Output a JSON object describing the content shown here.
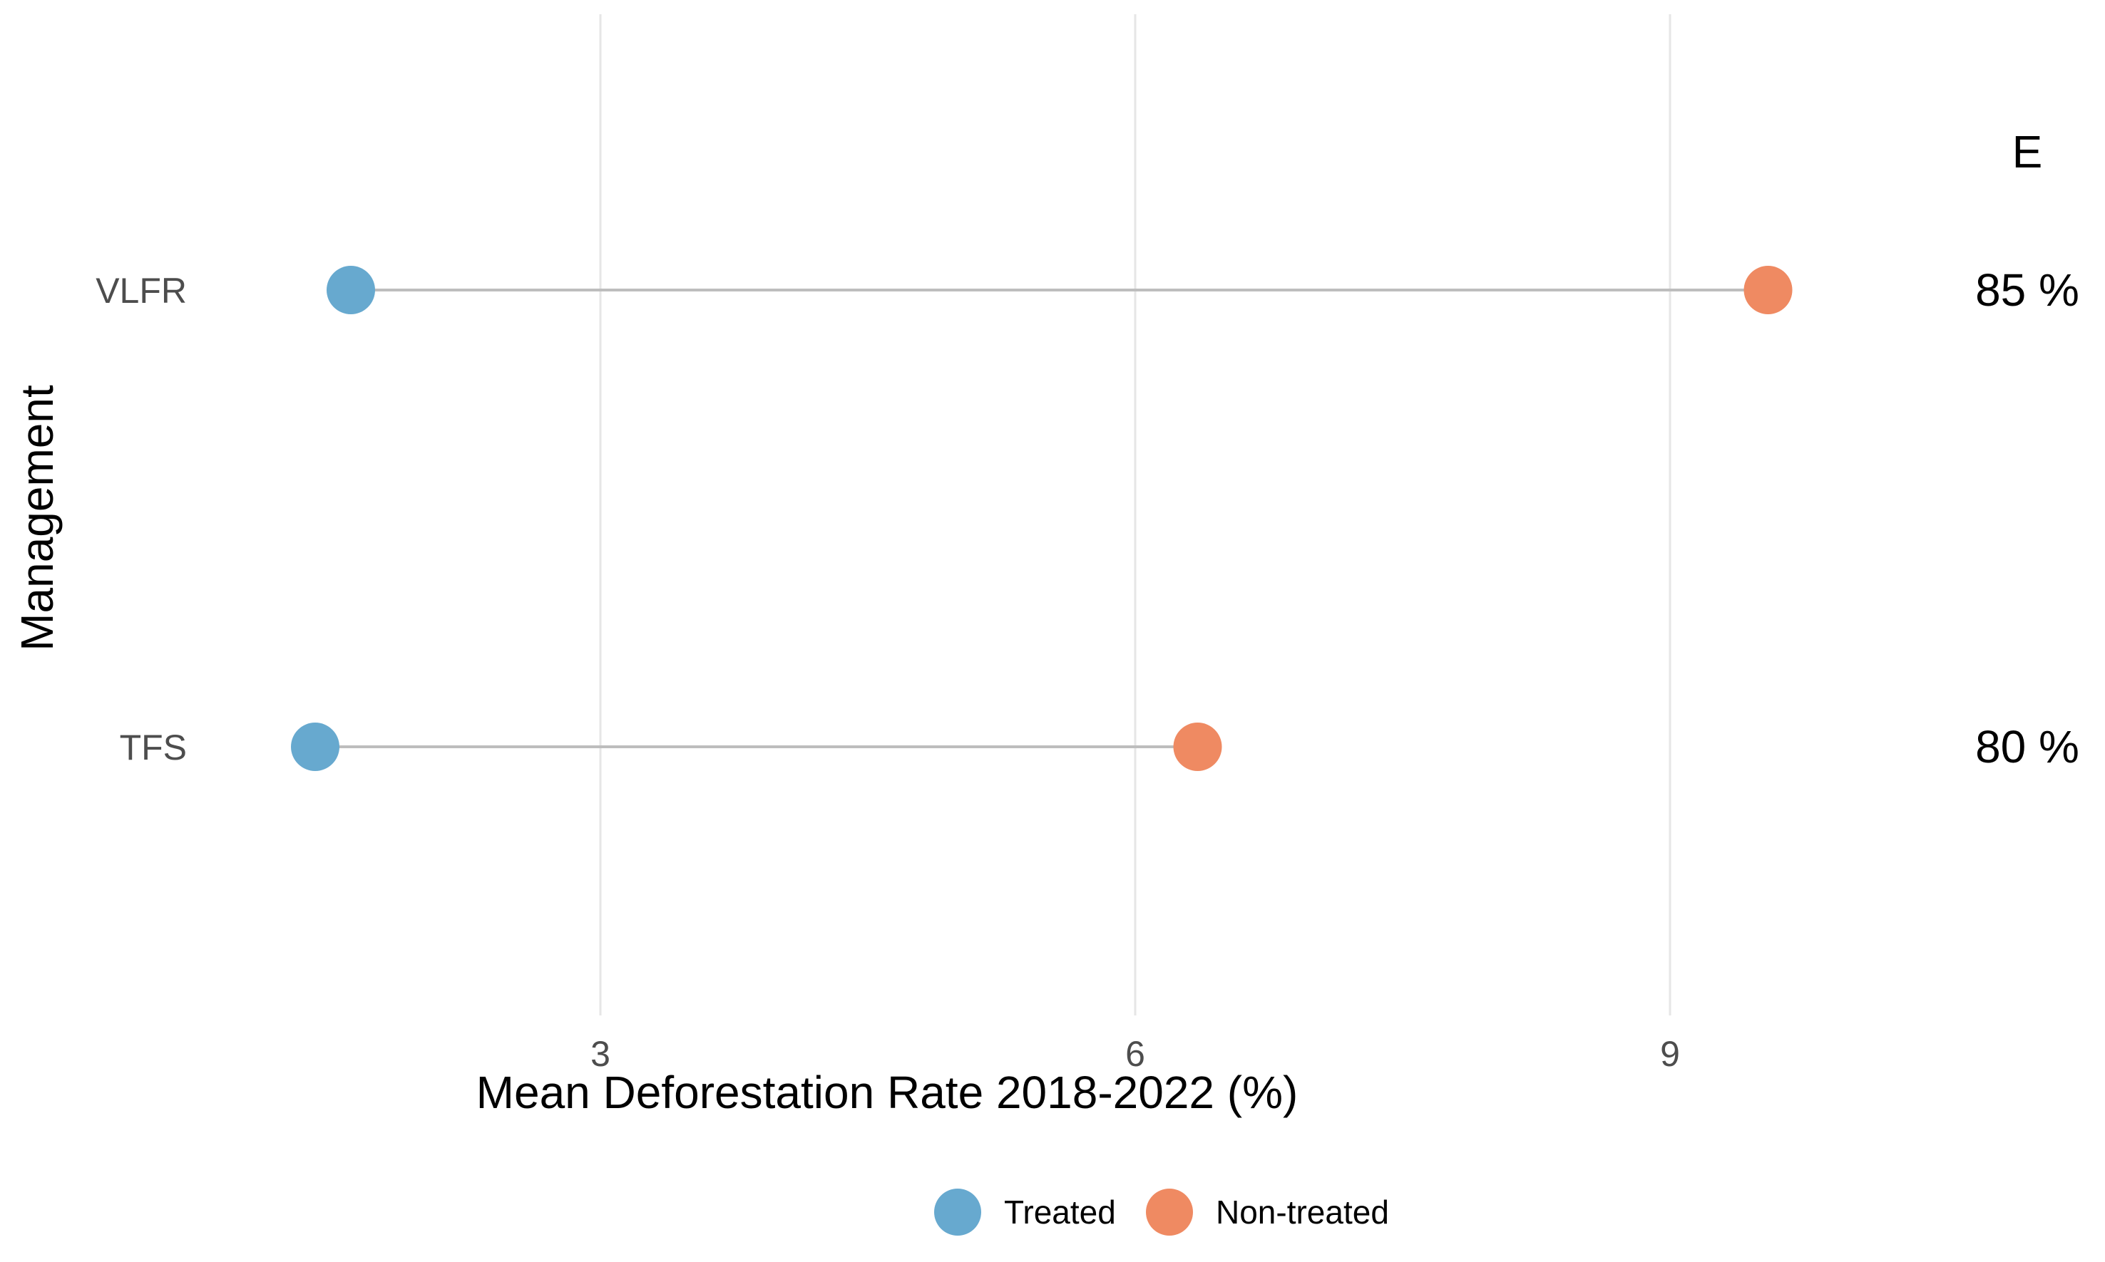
{
  "chart_data": {
    "type": "dumbbell",
    "xlabel": "Mean Deforestation Rate 2018-2022 (%)",
    "ylabel": "Management",
    "xlim": [
      0.6,
      10.8
    ],
    "x_ticks": [
      "3",
      "6",
      "9"
    ],
    "x_tick_values": [
      3,
      6,
      9
    ],
    "grid": "vertical major gridlines",
    "categories": [
      "VLFR",
      "TFS"
    ],
    "series": [
      {
        "name": "Treated",
        "color": "#67A9CF",
        "values": [
          1.6,
          1.4
        ]
      },
      {
        "name": "Non-treated",
        "color": "#EF8A62",
        "values": [
          9.55,
          6.35
        ]
      }
    ],
    "annotation_header": "E",
    "annotations": [
      "85 %",
      "80 %"
    ],
    "legend_position": "bottom",
    "segment_color": "#bdbdbd",
    "gridline_color": "#e6e6e6"
  }
}
